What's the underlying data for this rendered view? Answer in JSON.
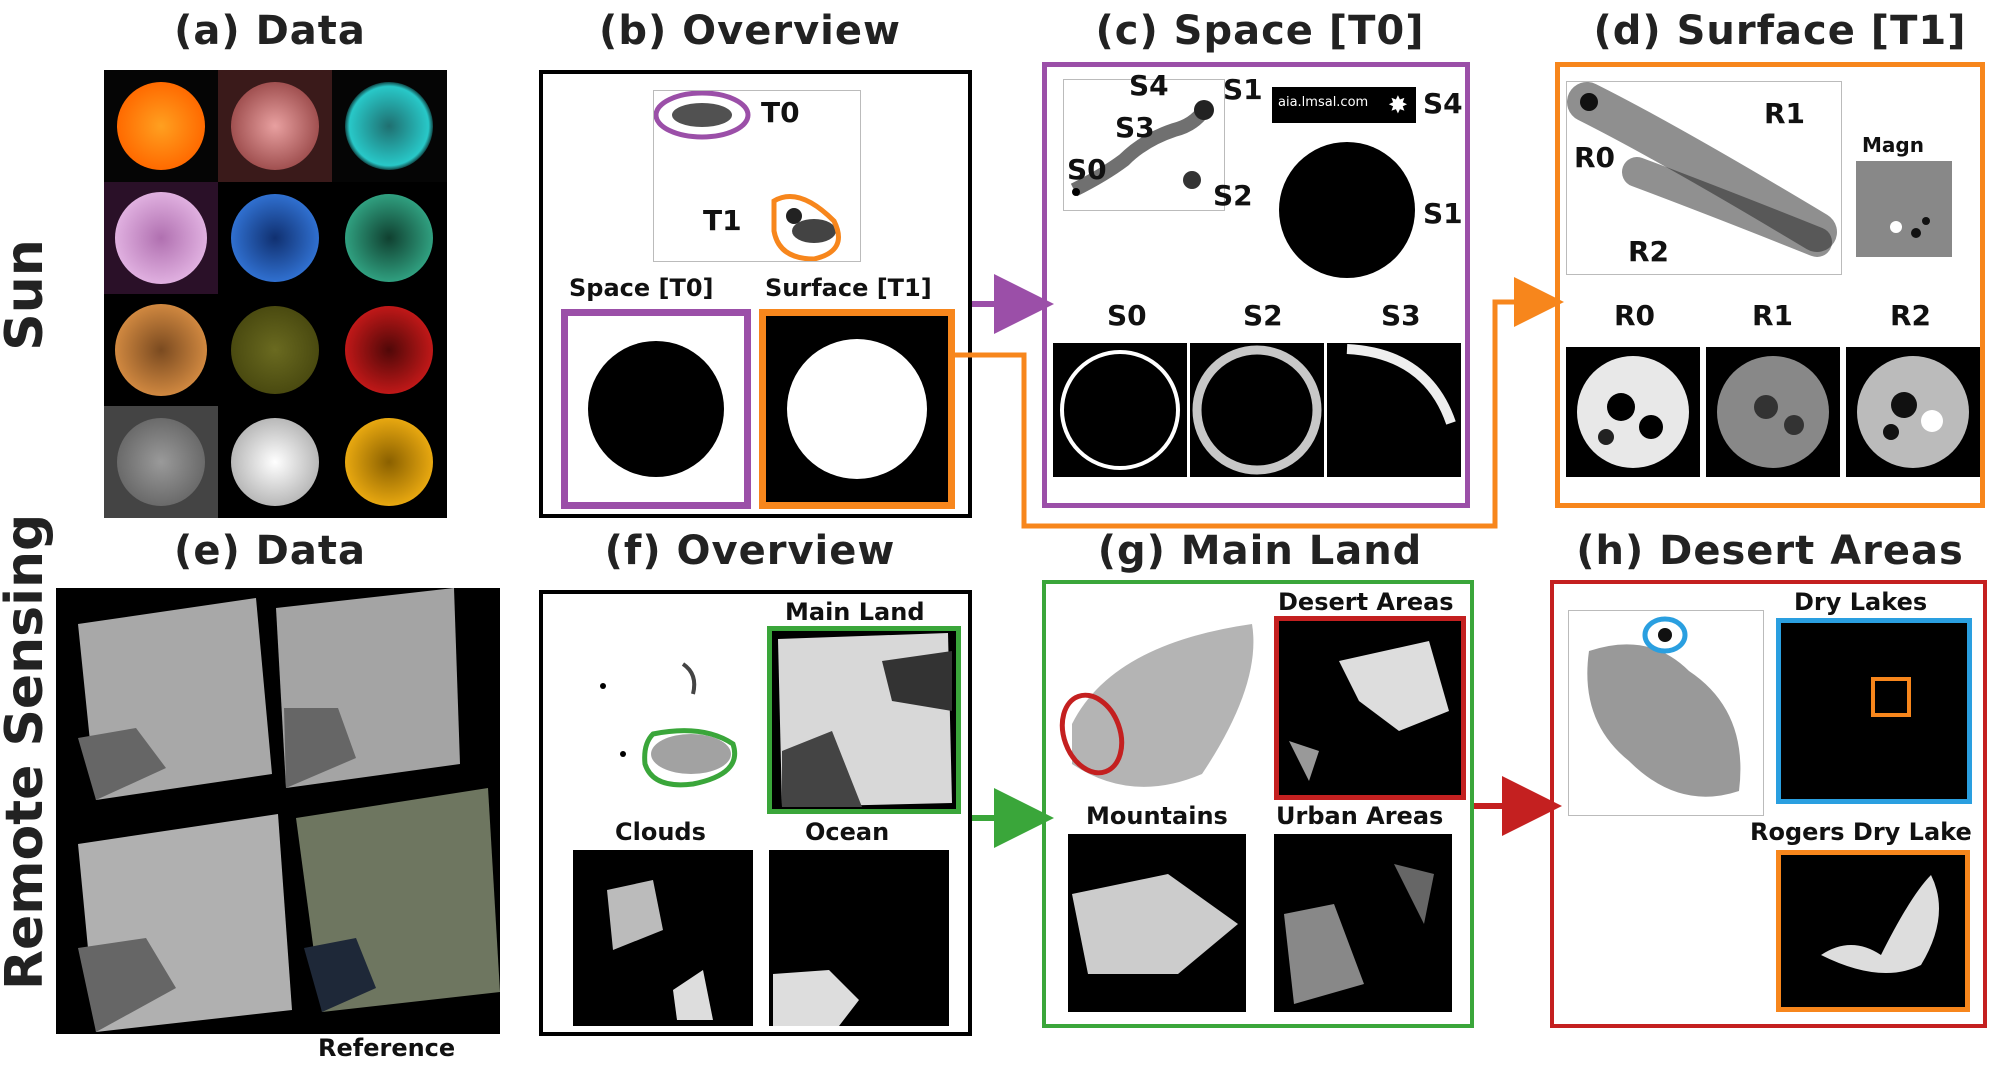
{
  "rows": {
    "sun": "Sun",
    "remote": "Remote Sensing"
  },
  "panels": {
    "a": "(a) Data",
    "b": "(b) Overview",
    "c": "(c) Space [T0]",
    "d": "(d) Surface [T1]",
    "e": "(e) Data",
    "f": "(f) Overview",
    "g": "(g) Main Land",
    "h": "(h) Desert Areas"
  },
  "b": {
    "t0": "T0",
    "t1": "T1",
    "space": "Space [T0]",
    "surface": "Surface [T1]"
  },
  "c": {
    "s0": "S0",
    "s1": "S1",
    "s2": "S2",
    "s3": "S3",
    "s4": "S4",
    "s4b": "S4",
    "s1b": "S1",
    "watermark": "aia.lmsal.com",
    "bot_s0": "S0",
    "bot_s2": "S2",
    "bot_s3": "S3"
  },
  "d": {
    "r0": "R0",
    "r1": "R1",
    "r2": "R2",
    "magn": "Magn",
    "bot_r0": "R0",
    "bot_r1": "R1",
    "bot_r2": "R2"
  },
  "e": {
    "reference": "Reference"
  },
  "f": {
    "main_land": "Main Land",
    "clouds": "Clouds",
    "ocean": "Ocean"
  },
  "g": {
    "desert": "Desert Areas",
    "mountains": "Mountains",
    "urban": "Urban Areas"
  },
  "h": {
    "dry_lakes": "Dry Lakes",
    "rogers": "Rogers Dry Lake"
  },
  "colors": {
    "purple": "#9b4fa8",
    "orange": "#f7861c",
    "green": "#3aa63a",
    "red": "#c42020",
    "blue": "#2a9fe0",
    "black": "#000000"
  }
}
